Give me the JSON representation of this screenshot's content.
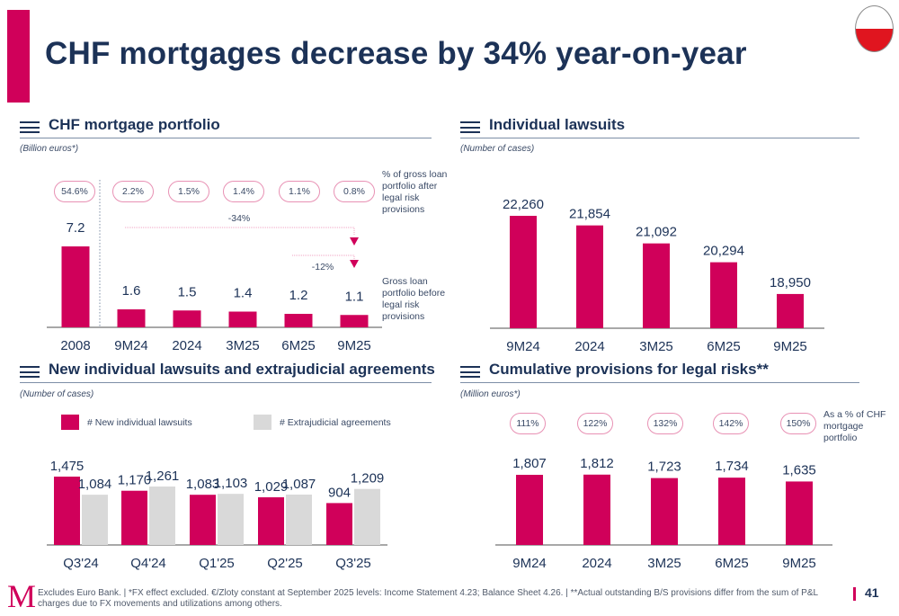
{
  "page": {
    "title": "CHF mortgages decrease by 34% year-on-year",
    "flag": "poland-flag",
    "page_number": "41",
    "footer_logo": "M",
    "footer_text": "Excludes Euro Bank. | *FX effect excluded. €/Zloty constant at September 2025 levels: Income Statement 4.23; Balance Sheet 4.26. | **Actual outstanding B/S provisions differ from the sum of P&L charges due to FX movements and utilizations among others.",
    "colors": {
      "brand": "#d0005a",
      "navy": "#1c3257",
      "grey_bar": "#d9d9d9",
      "pill_border": "#e891b4"
    }
  },
  "chart_data": [
    {
      "id": "chf-portfolio",
      "type": "bar",
      "title": "CHF mortgage portfolio",
      "unit": "(Billion euros*)",
      "categories": [
        "2008",
        "9M24",
        "2024",
        "3M25",
        "6M25",
        "9M25"
      ],
      "values": [
        7.2,
        1.6,
        1.5,
        1.4,
        1.2,
        1.1
      ],
      "value_labels": [
        "7.2",
        "1.6",
        "1.5",
        "1.4",
        "1.2",
        "1.1"
      ],
      "pills": [
        "54.6%",
        "2.2%",
        "1.5%",
        "1.4%",
        "1.1%",
        "0.8%"
      ],
      "pill_note": "% of gross loan portfolio after legal risk provisions",
      "bar_note": "Gross loan portfolio before legal risk provisions",
      "annotations": [
        {
          "label": "-34%",
          "from": "9M24",
          "to": "9M25"
        },
        {
          "label": "-12%",
          "from": "6M25",
          "to": "9M25"
        }
      ],
      "separator_after": "2008",
      "ylim": [
        0,
        8
      ],
      "grid": false
    },
    {
      "id": "individual-lawsuits",
      "type": "bar",
      "title": "Individual lawsuits",
      "unit": "(Number of cases)",
      "categories": [
        "9M24",
        "2024",
        "3M25",
        "6M25",
        "9M25"
      ],
      "values": [
        22260,
        21854,
        21092,
        20294,
        18950
      ],
      "value_labels": [
        "22,260",
        "21,854",
        "21,092",
        "20,294",
        "18,950"
      ],
      "ylim": [
        17500,
        22700
      ],
      "grid": false
    },
    {
      "id": "new-lawsuits-agreements",
      "type": "bar",
      "title": "New individual lawsuits and extrajudicial agreements",
      "unit": "(Number of cases)",
      "categories": [
        "Q3'24",
        "Q4'24",
        "Q1'25",
        "Q2'25",
        "Q3'25"
      ],
      "series": [
        {
          "name": "# New individual lawsuits",
          "color": "#d0005a",
          "values": [
            1475,
            1170,
            1083,
            1029,
            904
          ],
          "value_labels": [
            "1,475",
            "1,170",
            "1,083",
            "1,029",
            "904"
          ]
        },
        {
          "name": "# Extrajudicial agreements",
          "color": "#d9d9d9",
          "values": [
            1084,
            1261,
            1103,
            1087,
            1209
          ],
          "value_labels": [
            "1,084",
            "1,261",
            "1,103",
            "1,087",
            "1,209"
          ]
        }
      ],
      "legend": "top",
      "ylim": [
        0,
        1600
      ],
      "grid": false
    },
    {
      "id": "cumulative-provisions",
      "type": "bar",
      "title": "Cumulative provisions for legal risks**",
      "unit": "(Million euros*)",
      "categories": [
        "9M24",
        "2024",
        "3M25",
        "6M25",
        "9M25"
      ],
      "values": [
        1807,
        1812,
        1723,
        1734,
        1635
      ],
      "value_labels": [
        "1,807",
        "1,812",
        "1,723",
        "1,734",
        "1,635"
      ],
      "pills": [
        "111%",
        "122%",
        "132%",
        "142%",
        "150%"
      ],
      "pill_note": "As a % of CHF mortgage portfolio",
      "ylim": [
        0,
        2300
      ],
      "grid": false
    }
  ]
}
